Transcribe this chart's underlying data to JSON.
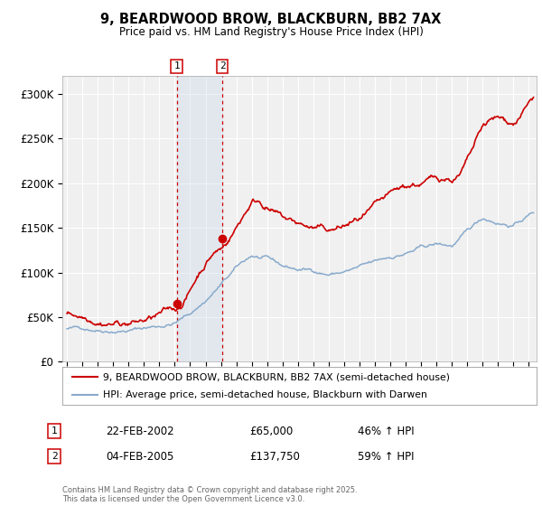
{
  "title": "9, BEARDWOOD BROW, BLACKBURN, BB2 7AX",
  "subtitle": "Price paid vs. HM Land Registry's House Price Index (HPI)",
  "legend_line1": "9, BEARDWOOD BROW, BLACKBURN, BB2 7AX (semi-detached house)",
  "legend_line2": "HPI: Average price, semi-detached house, Blackburn with Darwen",
  "red_color": "#cc0000",
  "blue_color": "#88aacc",
  "transaction1_date": "22-FEB-2002",
  "transaction1_price": "£65,000",
  "transaction1_hpi": "46% ↑ HPI",
  "transaction1_year": 2002.13,
  "transaction1_value": 65000,
  "transaction2_date": "04-FEB-2005",
  "transaction2_price": "£137,750",
  "transaction2_hpi": "59% ↑ HPI",
  "transaction2_year": 2005.09,
  "transaction2_value": 137750,
  "footer": "Contains HM Land Registry data © Crown copyright and database right 2025.\nThis data is licensed under the Open Government Licence v3.0.",
  "ylim": [
    0,
    320000
  ],
  "xlim_start": 1994.7,
  "xlim_end": 2025.5,
  "background_color": "#f0f0f0",
  "grid_color": "#ffffff",
  "shade_color": "#c8d8e8"
}
